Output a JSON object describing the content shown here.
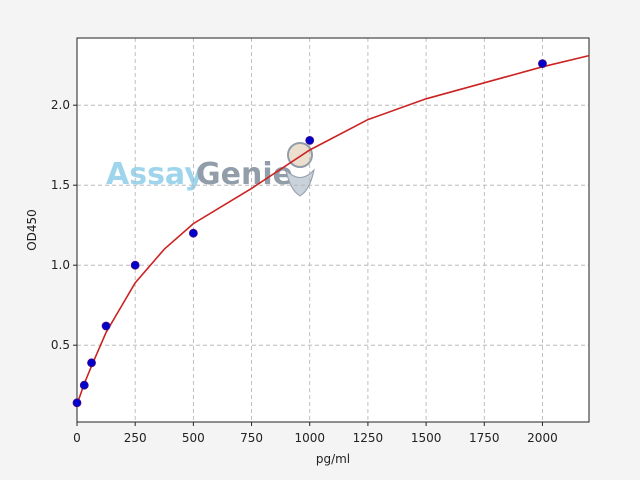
{
  "chart_data": {
    "type": "scatter",
    "xlabel": "pg/ml",
    "ylabel": "OD450",
    "watermark": [
      "Assay",
      "Genie"
    ],
    "x": [
      0,
      31.25,
      62.5,
      125,
      250,
      500,
      1000,
      2000
    ],
    "values": [
      0.14,
      0.25,
      0.39,
      0.62,
      1.0,
      1.2,
      1.78,
      2.26
    ],
    "color": "#0000cc",
    "fit": {
      "x": [
        0,
        31.25,
        62.5,
        125,
        250,
        375,
        500,
        750,
        1000,
        1250,
        1500,
        1750,
        2000,
        2200
      ],
      "values": [
        0.13,
        0.26,
        0.37,
        0.58,
        0.89,
        1.1,
        1.26,
        1.48,
        1.72,
        1.91,
        2.04,
        2.14,
        2.24,
        2.31
      ],
      "color": "#cc2222"
    },
    "xlim": [
      0,
      2200
    ],
    "ylim": [
      0.02,
      2.42
    ],
    "xticks": [
      0,
      250,
      500,
      750,
      1000,
      1250,
      1500,
      1750,
      2000
    ],
    "yticks": [
      0.5,
      {
        "value": 1,
        "label": "1.0"
      },
      1.5,
      {
        "value": 2,
        "label": "2.0"
      }
    ],
    "grid": true
  }
}
